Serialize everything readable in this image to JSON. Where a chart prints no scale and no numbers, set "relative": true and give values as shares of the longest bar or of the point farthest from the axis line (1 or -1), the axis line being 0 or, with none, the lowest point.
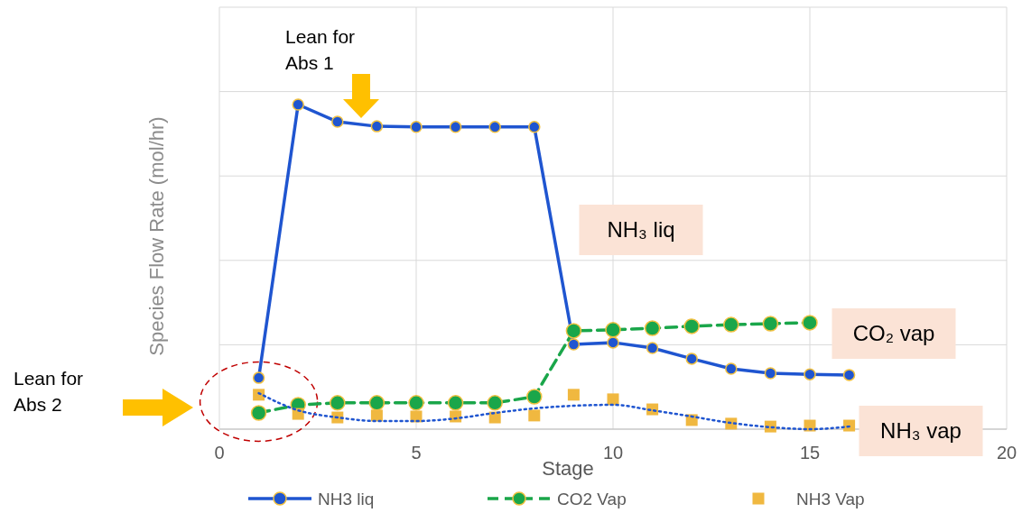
{
  "chart_data": {
    "type": "line",
    "xlabel": "Stage",
    "ylabel": "Species Flow Rate (mol/hr)",
    "relative": true,
    "xlim": [
      0,
      20
    ],
    "xticks": [
      0,
      5,
      10,
      15,
      20
    ],
    "tick_labels": "x",
    "grid": true,
    "legend": "bottom",
    "series": [
      {
        "name": "NH3 liq",
        "color": "#1f55d0",
        "marker": "circle",
        "line_style": "solid",
        "x": [
          1,
          2,
          3,
          4,
          5,
          6,
          7,
          8,
          9,
          10,
          11,
          12,
          13,
          14,
          15,
          16
        ],
        "values": [
          0.158,
          1,
          0.947,
          0.933,
          0.931,
          0.931,
          0.931,
          0.931,
          0.261,
          0.267,
          0.25,
          0.217,
          0.186,
          0.172,
          0.169,
          0.167
        ]
      },
      {
        "name": "CO2 Vap",
        "color": "#1aa64a",
        "marker": "circle",
        "line_style": "dashed",
        "x": [
          1,
          2,
          3,
          4,
          5,
          6,
          7,
          8,
          9,
          10,
          11,
          12,
          13,
          14,
          15
        ],
        "values": [
          0.05,
          0.075,
          0.081,
          0.081,
          0.081,
          0.081,
          0.081,
          0.1,
          0.303,
          0.306,
          0.311,
          0.317,
          0.322,
          0.325,
          0.328
        ]
      },
      {
        "name": "NH3 Vap",
        "type": "scatter",
        "color": "#f0b840",
        "marker": "square",
        "x": [
          1,
          2,
          3,
          4,
          5,
          6,
          7,
          8,
          9,
          10,
          11,
          12,
          13,
          14,
          15,
          16
        ],
        "values": [
          0.106,
          0.047,
          0.036,
          0.042,
          0.039,
          0.039,
          0.036,
          0.042,
          0.106,
          0.092,
          0.061,
          0.028,
          0.017,
          0.008,
          0.011,
          0.011
        ]
      },
      {
        "color": "#1f55d0",
        "marker": "none",
        "line_style": "dotted",
        "x": [
          1,
          2,
          3,
          4,
          5,
          6,
          7,
          8,
          9,
          10,
          11,
          12,
          13,
          14,
          15,
          16
        ],
        "values": [
          0.111,
          0.058,
          0.036,
          0.025,
          0.025,
          0.033,
          0.05,
          0.064,
          0.072,
          0.075,
          0.058,
          0.039,
          0.019,
          0.006,
          0,
          0.008
        ]
      }
    ],
    "annotations": [
      "Lean for Abs 1",
      "Lean for Abs 2",
      "NH₃ liq",
      "CO₂ vap",
      "NH₃ vap"
    ]
  }
}
